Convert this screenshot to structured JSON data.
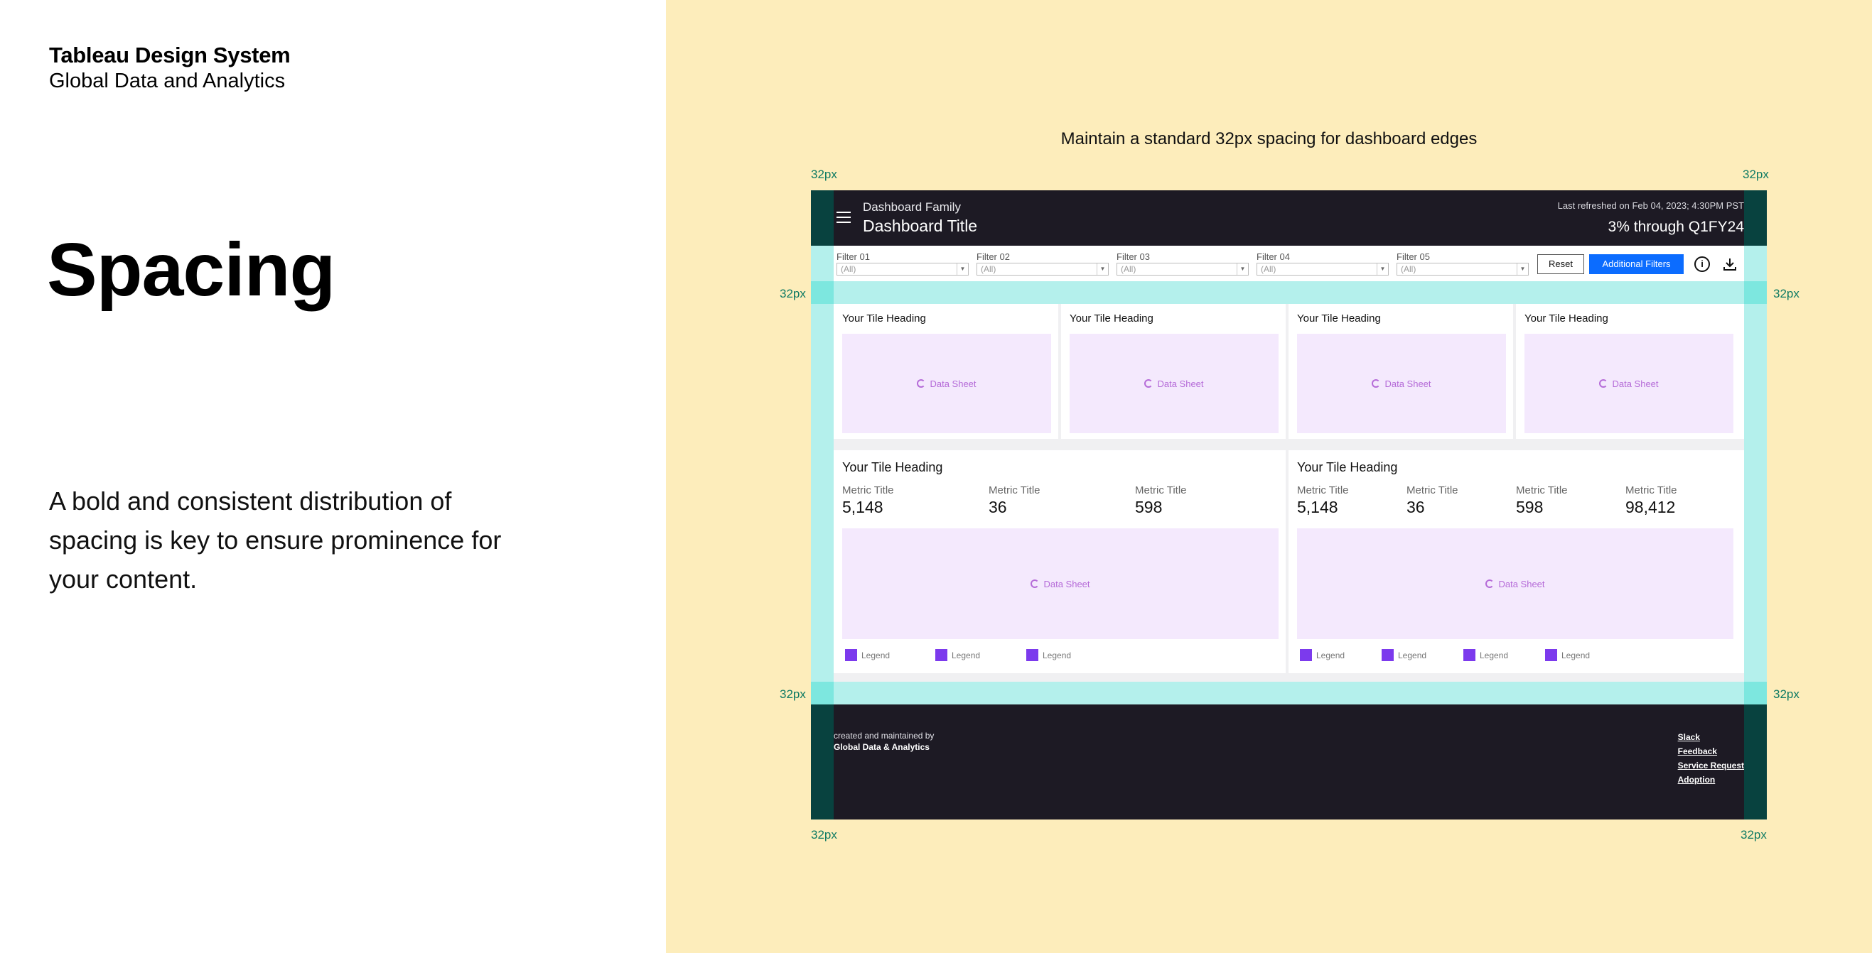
{
  "left": {
    "brand_title": "Tableau Design System",
    "brand_subtitle": "Global Data and Analytics",
    "heading": "Spacing",
    "description": "A bold and consistent distribution of spacing is key to ensure prominence for your content."
  },
  "right": {
    "caption": "Maintain a standard 32px spacing for dashboard edges",
    "spacing_label": "32px"
  },
  "dashboard": {
    "family": "Dashboard Family",
    "title": "Dashboard Title",
    "refreshed": "Last refreshed on Feb 04, 2023; 4:30PM PST",
    "period": "3% through Q1FY24",
    "filters": [
      {
        "label": "Filter 01",
        "value": "(All)"
      },
      {
        "label": "Filter 02",
        "value": "(All)"
      },
      {
        "label": "Filter 03",
        "value": "(All)"
      },
      {
        "label": "Filter 04",
        "value": "(All)"
      },
      {
        "label": "Filter 05",
        "value": "(All)"
      }
    ],
    "reset_label": "Reset",
    "additional_filters_label": "Additional Filters",
    "info_icon": "info-icon",
    "download_icon": "download-icon",
    "tile_heading": "Your Tile Heading",
    "data_sheet_label": "Data Sheet",
    "metric_title": "Metric Title",
    "metrics_left": [
      "5,148",
      "36",
      "598"
    ],
    "metrics_right": [
      "5,148",
      "36",
      "598",
      "98,412"
    ],
    "legend_label": "Legend",
    "footer": {
      "created": "created and maintained by",
      "org": "Global Data & Analytics",
      "links": [
        "Slack",
        "Feedback",
        "Service Request",
        "Adoption"
      ]
    }
  },
  "colors": {
    "accent_blue": "#0b6cff",
    "header_dark": "#1d1a24",
    "edge_dark": "#08423f",
    "edge_light": "#b4f0ec",
    "sheet_fill": "#f4e9fd",
    "legend_purple": "#7c3aed",
    "panel_yellow": "#fdedbb"
  }
}
